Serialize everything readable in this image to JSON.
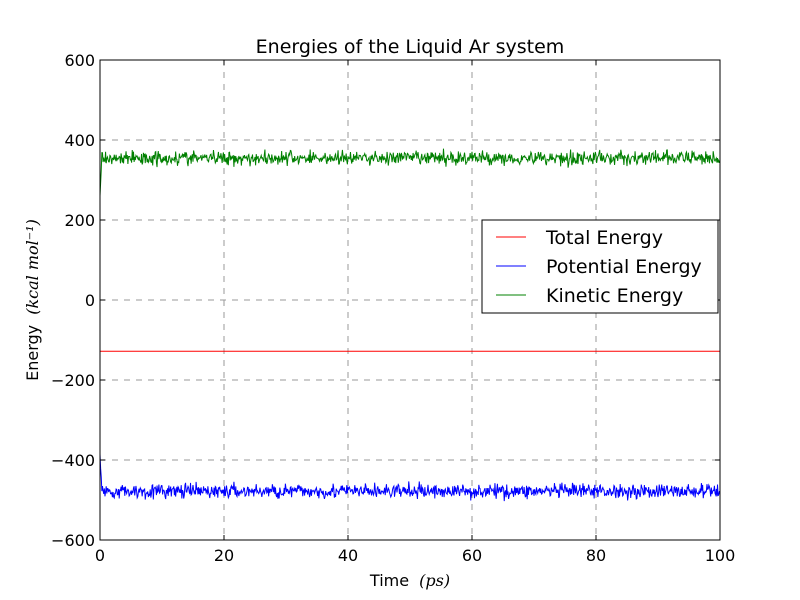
{
  "chart_data": {
    "type": "line",
    "title": "Energies of the Liquid Ar system",
    "xlabel": "Time",
    "xlabel_unit": "(ps)",
    "ylabel": "Energy",
    "ylabel_unit": "(kcal mol⁻¹)",
    "xlim": [
      0,
      100
    ],
    "ylim": [
      -600,
      600
    ],
    "xticks": [
      0,
      20,
      40,
      60,
      80,
      100
    ],
    "yticks": [
      600,
      400,
      200,
      0,
      -200,
      -400,
      -600
    ],
    "xtick_labels": [
      "0",
      "20",
      "40",
      "60",
      "80",
      "100"
    ],
    "ytick_labels": [
      "600",
      "400",
      "200",
      "0",
      "−200",
      "−400",
      "−600"
    ],
    "grid": true,
    "legend_position": "center-right",
    "series": [
      {
        "name": "Total Energy",
        "color": "#ff0000",
        "mean": -128,
        "noise": 0,
        "start": -128
      },
      {
        "name": "Potential Energy",
        "color": "#0000ff",
        "mean": -478,
        "noise": 9,
        "start": -385
      },
      {
        "name": "Kinetic Energy",
        "color": "#008000",
        "mean": 355,
        "noise": 9,
        "start": 260
      }
    ]
  }
}
